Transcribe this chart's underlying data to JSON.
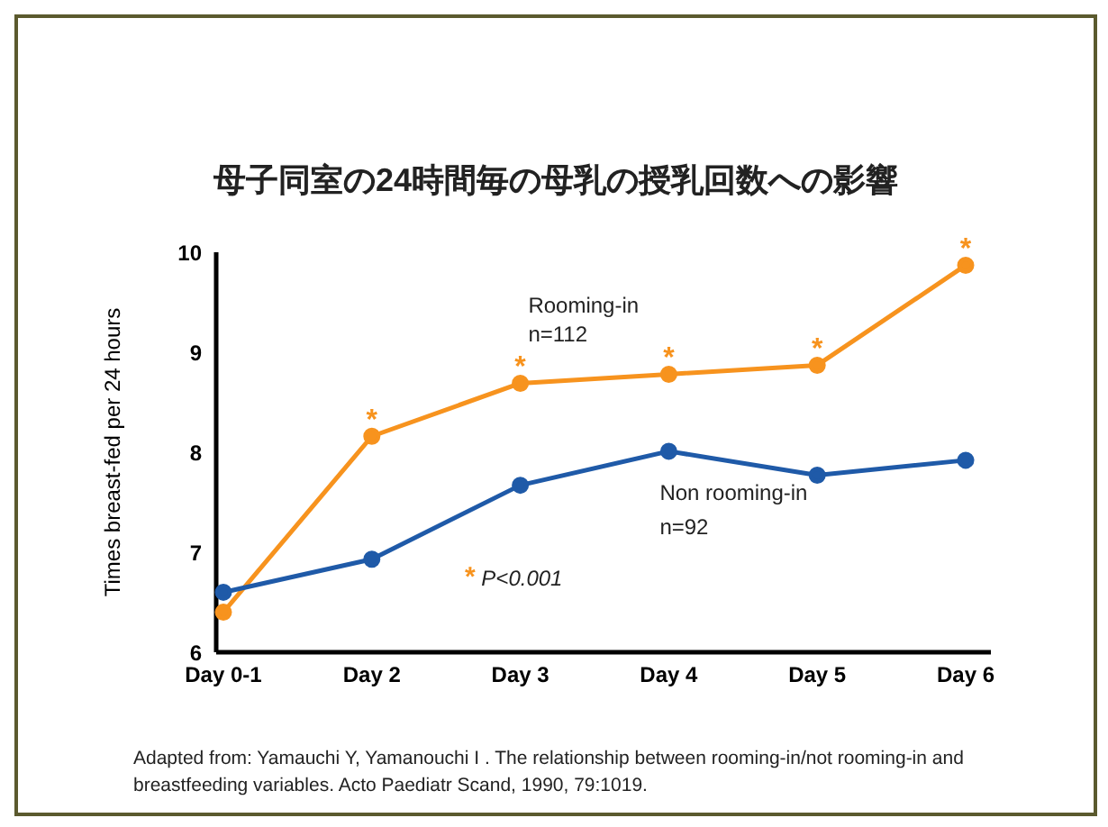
{
  "chart_data": {
    "type": "line",
    "title": "母子同室の24時間毎の母乳の授乳回数への影響",
    "ylabel": "Times breast-fed per 24 hours",
    "categories": [
      "Day 0-1",
      "Day 2",
      "Day 3",
      "Day 4",
      "Day 5",
      "Day 6"
    ],
    "series": [
      {
        "name": "Rooming-in",
        "color": "#f7931e",
        "values": [
          6.4,
          8.16,
          8.69,
          8.78,
          8.87,
          9.87
        ]
      },
      {
        "name": "Non rooming-in",
        "color": "#1f5aa8",
        "values": [
          6.6,
          6.93,
          7.67,
          8.01,
          7.77,
          7.92
        ]
      }
    ],
    "ylim": [
      6,
      10
    ],
    "yticks": [
      6,
      7,
      8,
      9,
      10
    ],
    "grid": false,
    "legend": false,
    "marker": "circle",
    "line_style": "solid",
    "annotations": [
      "n=112",
      "n=92",
      "* P<0.001",
      "Adapted from: Yamauchi Y, Yamanouchi I . The relationship between rooming-in/not rooming-in and breastfeeding variables. Acto Paediatr Scand, 1990, 79:1019.",
      {
        "text": "*",
        "x": "Day 2",
        "y": 8.16
      },
      {
        "text": "*",
        "x": "Day 3",
        "y": 8.69
      },
      {
        "text": "*",
        "x": "Day 4",
        "y": 8.78
      },
      {
        "text": "*",
        "x": "Day 5",
        "y": 8.87
      },
      {
        "text": "*",
        "x": "Day 6",
        "y": 9.87
      }
    ]
  }
}
